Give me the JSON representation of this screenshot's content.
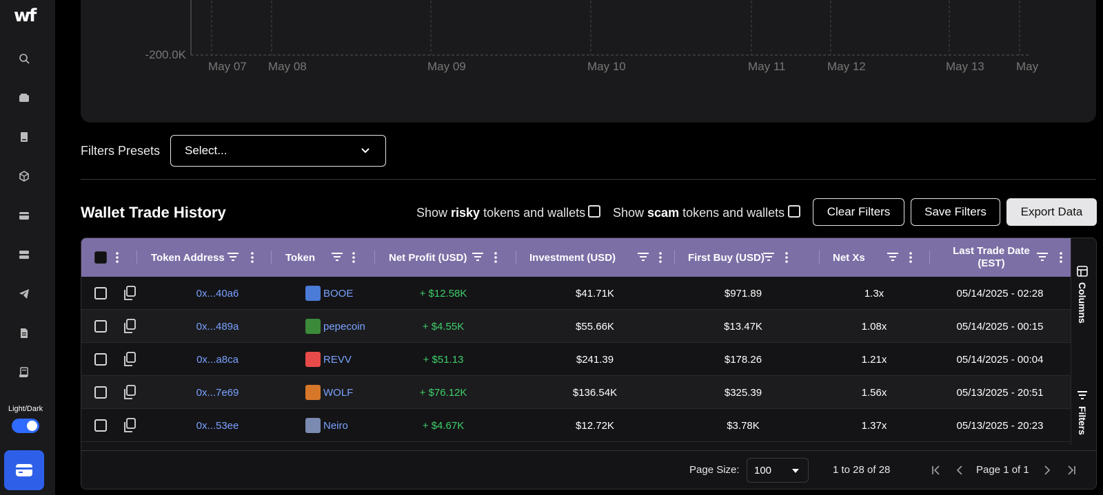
{
  "sidebar": {
    "logo": "wf",
    "icons": [
      "search-icon",
      "wallet-icon",
      "book-icon",
      "cube-icon",
      "card-icon",
      "server-icon",
      "telegram-icon",
      "document-icon",
      "receipt-icon"
    ],
    "theme_label": "Light/Dark",
    "toggle_on": true
  },
  "chart": {
    "y_tick": "-200.0K",
    "x_ticks": [
      "May 07",
      "May 08",
      "May 09",
      "May 10",
      "May 11",
      "May 12",
      "May 13",
      "May"
    ]
  },
  "presets": {
    "label": "Filters Presets",
    "value": "Select..."
  },
  "history": {
    "title": "Wallet Trade History",
    "risky_prefix": "Show ",
    "risky_bold": "risky",
    "risky_suffix": " tokens and wallets",
    "scam_prefix": "Show ",
    "scam_bold": "scam",
    "scam_suffix": " tokens and wallets",
    "clear_label": "Clear Filters",
    "save_label": "Save Filters",
    "export_label": "Export Data"
  },
  "table": {
    "columns": [
      "Token Address",
      "Token",
      "Net Profit (USD)",
      "Investment (USD)",
      "First Buy (USD)",
      "Net Xs",
      "Last Trade Date",
      "(EST)"
    ],
    "rows": [
      {
        "address": "0x...40a6",
        "token": "BOOE",
        "profit": "+ $12.58K",
        "investment": "$41.71K",
        "first_buy": "$971.89",
        "net_xs": "1.3x",
        "date": "05/14/2025 - 02:28"
      },
      {
        "address": "0x...489a",
        "token": "pepecoin",
        "profit": "+ $4.55K",
        "investment": "$55.66K",
        "first_buy": "$13.47K",
        "net_xs": "1.08x",
        "date": "05/14/2025 - 00:15"
      },
      {
        "address": "0x...a8ca",
        "token": "REVV",
        "profit": "+ $51.13",
        "investment": "$241.39",
        "first_buy": "$178.26",
        "net_xs": "1.21x",
        "date": "05/14/2025 - 00:04"
      },
      {
        "address": "0x...7e69",
        "token": "WOLF",
        "profit": "+ $76.12K",
        "investment": "$136.54K",
        "first_buy": "$325.39",
        "net_xs": "1.56x",
        "date": "05/13/2025 - 20:51"
      },
      {
        "address": "0x...53ee",
        "token": "Neiro",
        "profit": "+ $4.67K",
        "investment": "$12.72K",
        "first_buy": "$3.78K",
        "net_xs": "1.37x",
        "date": "05/13/2025 - 20:23"
      }
    ],
    "side_tabs": [
      "Columns",
      "Filters"
    ]
  },
  "pagination": {
    "page_size_label": "Page Size:",
    "page_size": "100",
    "range": "1 to 28 of 28",
    "page": "Page 1 of 1"
  },
  "colors": {
    "header": "#7c6fa6",
    "link": "#7aa2ff",
    "profit": "#3ecf6b",
    "accent": "#2e5fe8"
  }
}
